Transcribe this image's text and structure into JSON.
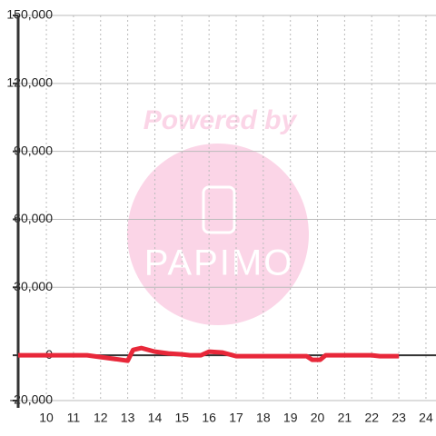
{
  "chart_data": {
    "type": "line",
    "watermark": [
      "Powered by",
      "PAPIMO"
    ],
    "x": [
      8.96,
      11.5,
      12,
      12.5,
      13,
      13.2,
      13.5,
      14,
      14.5,
      15,
      15.3,
      15.7,
      16,
      16.5,
      17,
      18,
      19,
      19.6,
      19.8,
      20.1,
      20.3,
      21,
      22,
      22.3,
      23
    ],
    "series": [
      {
        "color": "#e8283a",
        "values": [
          0,
          0,
          -800,
          -1600,
          -2400,
          2400,
          3200,
          1600,
          800,
          400,
          0,
          0,
          1600,
          1200,
          -400,
          -400,
          -400,
          -400,
          -2000,
          -2000,
          0,
          0,
          0,
          -400,
          -400
        ]
      }
    ],
    "xlim": [
      8.96,
      24.37
    ],
    "xticks": [
      10,
      11,
      12,
      13,
      14,
      15,
      16,
      17,
      18,
      19,
      20,
      21,
      22,
      23,
      24
    ],
    "ylim": [
      -20000,
      150000
    ],
    "yticks": [
      {
        "value": -20000,
        "label": "-20,000"
      },
      0,
      {
        "value": 30000,
        "label": "30,000"
      },
      {
        "value": 60000,
        "label": "60,000"
      },
      {
        "value": 90000,
        "label": "90,000"
      },
      {
        "value": 120000,
        "label": "120,000"
      },
      {
        "value": 150000,
        "label": "150,000"
      }
    ],
    "grid": true
  }
}
